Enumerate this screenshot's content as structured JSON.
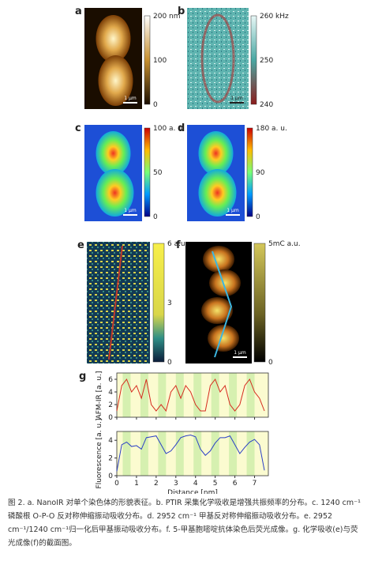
{
  "figure": {
    "panels": [
      {
        "letter": "a",
        "colorbar_labels": [
          "200 nm",
          "100",
          "0"
        ],
        "scale_bar": "1 μm"
      },
      {
        "letter": "b",
        "colorbar_labels": [
          "260 kHz",
          "250",
          "240"
        ],
        "scale_bar": "1 μm"
      },
      {
        "letter": "c",
        "colorbar_labels": [
          "100 a. u",
          "50",
          "0"
        ],
        "scale_bar": "1 μm"
      },
      {
        "letter": "d",
        "colorbar_labels": [
          "180 a. u.",
          "90",
          "0"
        ],
        "scale_bar": "1 μm"
      },
      {
        "letter": "e",
        "colorbar_labels": [
          "6 a.u.",
          "3",
          "0"
        ]
      },
      {
        "letter": "f",
        "colorbar_labels": [
          "5mC a.u.",
          "0"
        ],
        "scale_bar": "1 μm"
      }
    ],
    "chart_letter": "g"
  },
  "chart_data": [
    {
      "type": "line",
      "ylabel": "AFM-IR [a. u.]",
      "xlim": [
        0,
        7.7
      ],
      "xticks": [
        0,
        1,
        2,
        3,
        4,
        5,
        6,
        7
      ],
      "ylim": [
        0,
        7
      ],
      "yticks": [
        0,
        2,
        4,
        6
      ],
      "x": [
        0,
        0.25,
        0.5,
        0.75,
        1,
        1.25,
        1.5,
        1.75,
        2,
        2.25,
        2.5,
        2.75,
        3,
        3.25,
        3.5,
        3.75,
        4,
        4.25,
        4.5,
        4.75,
        5,
        5.25,
        5.5,
        5.75,
        6,
        6.25,
        6.5,
        6.75,
        7,
        7.25,
        7.5
      ],
      "series": [
        {
          "name": "AFM-IR",
          "color": "#d62a1e",
          "values": [
            1,
            5,
            6,
            4,
            5,
            3,
            6,
            2,
            1,
            2,
            1,
            4,
            5,
            3,
            5,
            4,
            2,
            1,
            1,
            5,
            6,
            4,
            5,
            2,
            1,
            2,
            5,
            6,
            4,
            3,
            1
          ]
        }
      ]
    },
    {
      "type": "line",
      "ylabel": "Fluorescence [a. u.]",
      "xlabel": "Distance [nm]",
      "xlim": [
        0,
        7.7
      ],
      "xticks": [
        0,
        1,
        2,
        3,
        4,
        5,
        6,
        7
      ],
      "ylim": [
        0,
        5
      ],
      "yticks": [
        0,
        2,
        4
      ],
      "x": [
        0,
        0.25,
        0.5,
        0.75,
        1,
        1.25,
        1.5,
        1.75,
        2,
        2.25,
        2.5,
        2.75,
        3,
        3.25,
        3.5,
        3.75,
        4,
        4.25,
        4.5,
        4.75,
        5,
        5.25,
        5.5,
        5.75,
        6,
        6.25,
        6.5,
        6.75,
        7,
        7.25,
        7.5
      ],
      "series": [
        {
          "name": "Fluorescence",
          "color": "#2a3fc7",
          "values": [
            0.5,
            3.5,
            3.8,
            3.3,
            3.4,
            3,
            4.3,
            4.4,
            4.5,
            3.5,
            2.5,
            2.8,
            3.5,
            4.3,
            4.5,
            4.6,
            4.4,
            3,
            2.3,
            2.8,
            3.7,
            4.3,
            4.3,
            4.5,
            3.5,
            2.5,
            3.2,
            3.8,
            4.1,
            3.5,
            0.6
          ]
        }
      ]
    }
  ],
  "caption": "图 2. a. NanoIR 对单个染色体的形貌表征。b. PTIR 采集化学吸收是增强共振频率的分布。c. 1240 cm⁻¹ 磷酸根 O-P-O 反对称伸缩振动吸收分布。d. 2952 cm⁻¹ 甲基反对称伸缩振动吸收分布。e. 2952 cm⁻¹/1240 cm⁻¹归一化后甲基振动吸收分布。f. 5-甲基胞嘧啶抗体染色后荧光成像。g. 化学吸收(e)与荧光成像(f)的截面图。"
}
